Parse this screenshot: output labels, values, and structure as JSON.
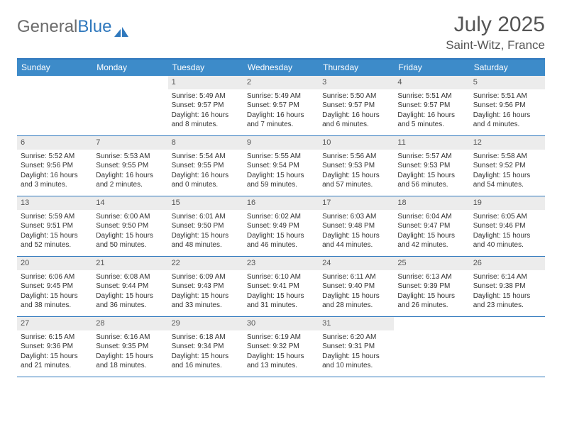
{
  "logo": {
    "text1": "General",
    "text2": "Blue"
  },
  "title": {
    "month": "July 2025",
    "location": "Saint-Witz, France"
  },
  "colors": {
    "brand_blue": "#3d8bc9",
    "border_blue": "#2f78bd",
    "daynum_bg": "#ececec",
    "text_gray": "#555555"
  },
  "dayNames": [
    "Sunday",
    "Monday",
    "Tuesday",
    "Wednesday",
    "Thursday",
    "Friday",
    "Saturday"
  ],
  "weeks": [
    [
      {
        "num": "",
        "empty": true
      },
      {
        "num": "",
        "empty": true
      },
      {
        "num": "1",
        "sunrise": "Sunrise: 5:49 AM",
        "sunset": "Sunset: 9:57 PM",
        "daylight": "Daylight: 16 hours and 8 minutes."
      },
      {
        "num": "2",
        "sunrise": "Sunrise: 5:49 AM",
        "sunset": "Sunset: 9:57 PM",
        "daylight": "Daylight: 16 hours and 7 minutes."
      },
      {
        "num": "3",
        "sunrise": "Sunrise: 5:50 AM",
        "sunset": "Sunset: 9:57 PM",
        "daylight": "Daylight: 16 hours and 6 minutes."
      },
      {
        "num": "4",
        "sunrise": "Sunrise: 5:51 AM",
        "sunset": "Sunset: 9:57 PM",
        "daylight": "Daylight: 16 hours and 5 minutes."
      },
      {
        "num": "5",
        "sunrise": "Sunrise: 5:51 AM",
        "sunset": "Sunset: 9:56 PM",
        "daylight": "Daylight: 16 hours and 4 minutes."
      }
    ],
    [
      {
        "num": "6",
        "sunrise": "Sunrise: 5:52 AM",
        "sunset": "Sunset: 9:56 PM",
        "daylight": "Daylight: 16 hours and 3 minutes."
      },
      {
        "num": "7",
        "sunrise": "Sunrise: 5:53 AM",
        "sunset": "Sunset: 9:55 PM",
        "daylight": "Daylight: 16 hours and 2 minutes."
      },
      {
        "num": "8",
        "sunrise": "Sunrise: 5:54 AM",
        "sunset": "Sunset: 9:55 PM",
        "daylight": "Daylight: 16 hours and 0 minutes."
      },
      {
        "num": "9",
        "sunrise": "Sunrise: 5:55 AM",
        "sunset": "Sunset: 9:54 PM",
        "daylight": "Daylight: 15 hours and 59 minutes."
      },
      {
        "num": "10",
        "sunrise": "Sunrise: 5:56 AM",
        "sunset": "Sunset: 9:53 PM",
        "daylight": "Daylight: 15 hours and 57 minutes."
      },
      {
        "num": "11",
        "sunrise": "Sunrise: 5:57 AM",
        "sunset": "Sunset: 9:53 PM",
        "daylight": "Daylight: 15 hours and 56 minutes."
      },
      {
        "num": "12",
        "sunrise": "Sunrise: 5:58 AM",
        "sunset": "Sunset: 9:52 PM",
        "daylight": "Daylight: 15 hours and 54 minutes."
      }
    ],
    [
      {
        "num": "13",
        "sunrise": "Sunrise: 5:59 AM",
        "sunset": "Sunset: 9:51 PM",
        "daylight": "Daylight: 15 hours and 52 minutes."
      },
      {
        "num": "14",
        "sunrise": "Sunrise: 6:00 AM",
        "sunset": "Sunset: 9:50 PM",
        "daylight": "Daylight: 15 hours and 50 minutes."
      },
      {
        "num": "15",
        "sunrise": "Sunrise: 6:01 AM",
        "sunset": "Sunset: 9:50 PM",
        "daylight": "Daylight: 15 hours and 48 minutes."
      },
      {
        "num": "16",
        "sunrise": "Sunrise: 6:02 AM",
        "sunset": "Sunset: 9:49 PM",
        "daylight": "Daylight: 15 hours and 46 minutes."
      },
      {
        "num": "17",
        "sunrise": "Sunrise: 6:03 AM",
        "sunset": "Sunset: 9:48 PM",
        "daylight": "Daylight: 15 hours and 44 minutes."
      },
      {
        "num": "18",
        "sunrise": "Sunrise: 6:04 AM",
        "sunset": "Sunset: 9:47 PM",
        "daylight": "Daylight: 15 hours and 42 minutes."
      },
      {
        "num": "19",
        "sunrise": "Sunrise: 6:05 AM",
        "sunset": "Sunset: 9:46 PM",
        "daylight": "Daylight: 15 hours and 40 minutes."
      }
    ],
    [
      {
        "num": "20",
        "sunrise": "Sunrise: 6:06 AM",
        "sunset": "Sunset: 9:45 PM",
        "daylight": "Daylight: 15 hours and 38 minutes."
      },
      {
        "num": "21",
        "sunrise": "Sunrise: 6:08 AM",
        "sunset": "Sunset: 9:44 PM",
        "daylight": "Daylight: 15 hours and 36 minutes."
      },
      {
        "num": "22",
        "sunrise": "Sunrise: 6:09 AM",
        "sunset": "Sunset: 9:43 PM",
        "daylight": "Daylight: 15 hours and 33 minutes."
      },
      {
        "num": "23",
        "sunrise": "Sunrise: 6:10 AM",
        "sunset": "Sunset: 9:41 PM",
        "daylight": "Daylight: 15 hours and 31 minutes."
      },
      {
        "num": "24",
        "sunrise": "Sunrise: 6:11 AM",
        "sunset": "Sunset: 9:40 PM",
        "daylight": "Daylight: 15 hours and 28 minutes."
      },
      {
        "num": "25",
        "sunrise": "Sunrise: 6:13 AM",
        "sunset": "Sunset: 9:39 PM",
        "daylight": "Daylight: 15 hours and 26 minutes."
      },
      {
        "num": "26",
        "sunrise": "Sunrise: 6:14 AM",
        "sunset": "Sunset: 9:38 PM",
        "daylight": "Daylight: 15 hours and 23 minutes."
      }
    ],
    [
      {
        "num": "27",
        "sunrise": "Sunrise: 6:15 AM",
        "sunset": "Sunset: 9:36 PM",
        "daylight": "Daylight: 15 hours and 21 minutes."
      },
      {
        "num": "28",
        "sunrise": "Sunrise: 6:16 AM",
        "sunset": "Sunset: 9:35 PM",
        "daylight": "Daylight: 15 hours and 18 minutes."
      },
      {
        "num": "29",
        "sunrise": "Sunrise: 6:18 AM",
        "sunset": "Sunset: 9:34 PM",
        "daylight": "Daylight: 15 hours and 16 minutes."
      },
      {
        "num": "30",
        "sunrise": "Sunrise: 6:19 AM",
        "sunset": "Sunset: 9:32 PM",
        "daylight": "Daylight: 15 hours and 13 minutes."
      },
      {
        "num": "31",
        "sunrise": "Sunrise: 6:20 AM",
        "sunset": "Sunset: 9:31 PM",
        "daylight": "Daylight: 15 hours and 10 minutes."
      },
      {
        "num": "",
        "empty": true
      },
      {
        "num": "",
        "empty": true
      }
    ]
  ]
}
